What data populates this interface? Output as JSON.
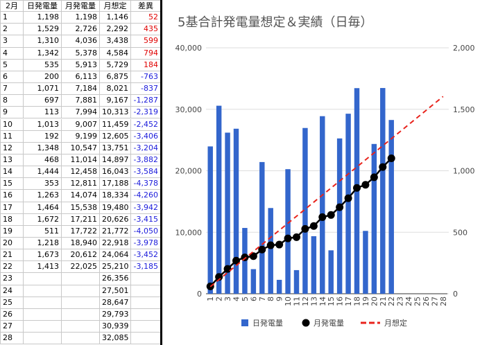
{
  "table": {
    "header": [
      "2月",
      "日発電量",
      "月発電量",
      "月想定",
      "差異"
    ],
    "rows": [
      [
        "1",
        "1,198",
        "1,198",
        "1,146",
        "52"
      ],
      [
        "2",
        "1,529",
        "2,726",
        "2,292",
        "435"
      ],
      [
        "3",
        "1,310",
        "4,036",
        "3,438",
        "599"
      ],
      [
        "4",
        "1,342",
        "5,378",
        "4,584",
        "794"
      ],
      [
        "5",
        "535",
        "5,913",
        "5,729",
        "184"
      ],
      [
        "6",
        "200",
        "6,113",
        "6,875",
        "-763"
      ],
      [
        "7",
        "1,071",
        "7,184",
        "8,021",
        "-837"
      ],
      [
        "8",
        "697",
        "7,881",
        "9,167",
        "-1,287"
      ],
      [
        "9",
        "113",
        "7,994",
        "10,313",
        "-2,319"
      ],
      [
        "10",
        "1,013",
        "9,007",
        "11,459",
        "-2,452"
      ],
      [
        "11",
        "192",
        "9,199",
        "12,605",
        "-3,406"
      ],
      [
        "12",
        "1,348",
        "10,547",
        "13,751",
        "-3,204"
      ],
      [
        "13",
        "468",
        "11,014",
        "14,897",
        "-3,882"
      ],
      [
        "14",
        "1,444",
        "12,458",
        "16,043",
        "-3,584"
      ],
      [
        "15",
        "353",
        "12,811",
        "17,188",
        "-4,378"
      ],
      [
        "16",
        "1,263",
        "14,074",
        "18,334",
        "-4,260"
      ],
      [
        "17",
        "1,464",
        "15,538",
        "19,480",
        "-3,942"
      ],
      [
        "18",
        "1,672",
        "17,211",
        "20,626",
        "-3,415"
      ],
      [
        "19",
        "511",
        "17,722",
        "21,772",
        "-4,050"
      ],
      [
        "20",
        "1,218",
        "18,940",
        "22,918",
        "-3,978"
      ],
      [
        "21",
        "1,673",
        "20,612",
        "24,064",
        "-3,452"
      ],
      [
        "22",
        "1,413",
        "22,025",
        "25,210",
        "-3,185"
      ],
      [
        "23",
        null,
        null,
        "26,356",
        null
      ],
      [
        "24",
        null,
        null,
        "27,501",
        null
      ],
      [
        "25",
        null,
        null,
        "28,647",
        null
      ],
      [
        "26",
        null,
        null,
        "29,793",
        null
      ],
      [
        "27",
        null,
        null,
        "30,939",
        null
      ],
      [
        "28",
        null,
        null,
        "32,085",
        null
      ]
    ]
  },
  "chart_data": {
    "type": "combo",
    "title": "5基合計発電量想定＆実績（日毎）",
    "categories": [
      "1",
      "2",
      "3",
      "4",
      "5",
      "6",
      "7",
      "8",
      "9",
      "10",
      "11",
      "12",
      "13",
      "14",
      "15",
      "16",
      "17",
      "18",
      "19",
      "20",
      "21",
      "22",
      "23",
      "24",
      "25",
      "26",
      "27",
      "28"
    ],
    "ylim": [
      0,
      40000
    ],
    "yticks": [
      0,
      {
        "value": 10000,
        "label": "10,000"
      },
      {
        "value": 20000,
        "label": "20,000"
      },
      {
        "value": 30000,
        "label": "30,000"
      },
      {
        "value": 40000,
        "label": "40,000"
      }
    ],
    "y2lim": [
      0,
      2000
    ],
    "y2ticks": [
      0,
      500,
      {
        "value": 1000,
        "label": "1,000"
      },
      {
        "value": 1500,
        "label": "1,500"
      },
      {
        "value": 2000,
        "label": "2,000"
      }
    ],
    "grid": true,
    "legend": "bottom",
    "series": [
      {
        "name": "日発電量",
        "type": "bar",
        "axis": "y2",
        "color": "#3366cc",
        "values": [
          1198,
          1529,
          1310,
          1342,
          535,
          200,
          1071,
          697,
          113,
          1013,
          192,
          1348,
          468,
          1444,
          353,
          1263,
          1464,
          1672,
          511,
          1218,
          1673,
          1413,
          null,
          null,
          null,
          null,
          null,
          null
        ]
      },
      {
        "name": "月発電量",
        "type": "line",
        "marker": "circle",
        "color": "#000000",
        "values": [
          1198,
          2726,
          4036,
          5378,
          5913,
          6113,
          7184,
          7881,
          7994,
          9007,
          9199,
          10547,
          11014,
          12458,
          12811,
          14074,
          15538,
          17211,
          17722,
          18940,
          20612,
          22025,
          null,
          null,
          null,
          null,
          null,
          null
        ]
      },
      {
        "name": "月想定",
        "type": "line",
        "line_style": "dashed",
        "color": "#e8231c",
        "values": [
          1146,
          2292,
          3438,
          4584,
          5729,
          6875,
          8021,
          9167,
          10313,
          11459,
          12605,
          13751,
          14897,
          16043,
          17188,
          18334,
          19480,
          20626,
          21772,
          22918,
          24064,
          25210,
          26356,
          27501,
          28647,
          29793,
          30939,
          32085
        ]
      }
    ]
  }
}
